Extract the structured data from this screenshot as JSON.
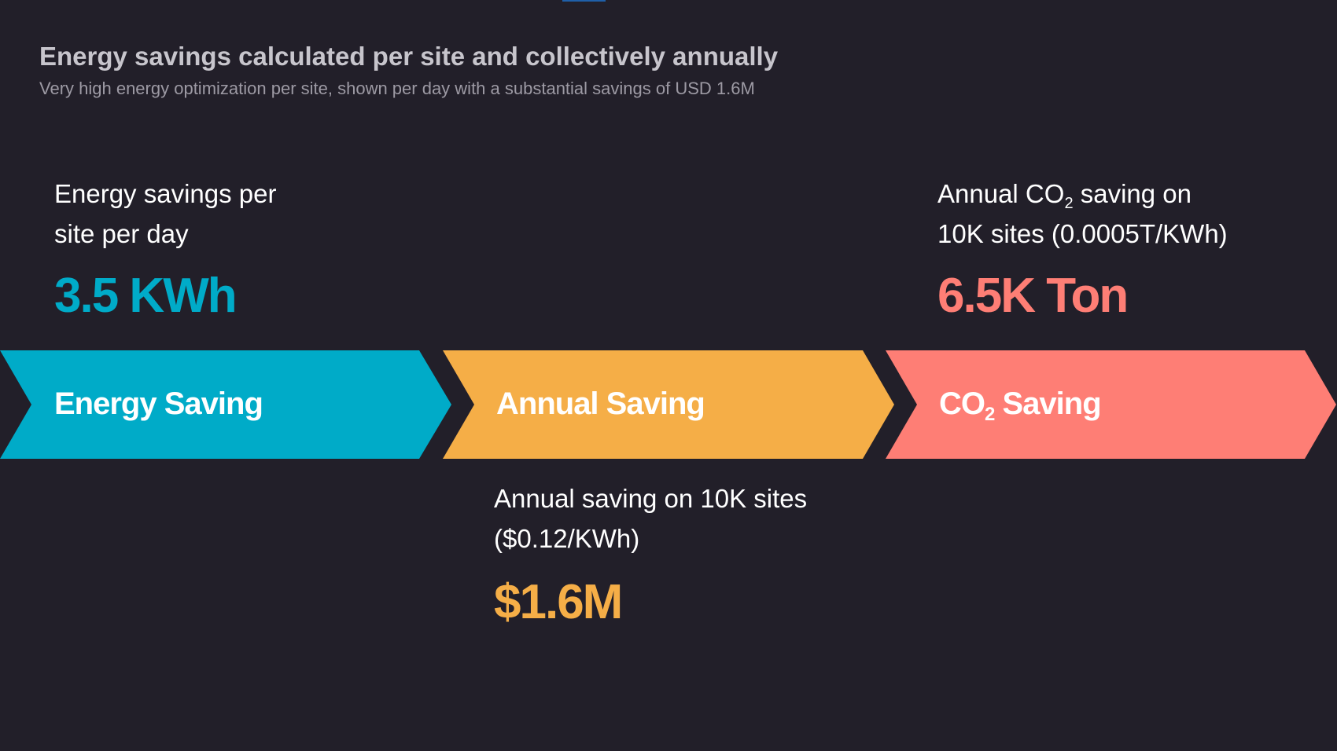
{
  "header": {
    "title": "Energy savings calculated per site and collectively annually",
    "subtitle": "Very high energy optimization per site, shown per day with a substantial savings of USD 1.6M"
  },
  "colors": {
    "background": "#221f29",
    "energy": "#00abc8",
    "annual": "#f5ae47",
    "co2": "#fe7e75"
  },
  "energy": {
    "desc_line1": "Energy savings per",
    "desc_line2": "site per day",
    "value": "3.5 KWh",
    "chevron_label": "Energy Saving"
  },
  "annual": {
    "desc_line1": "Annual saving on 10K sites",
    "desc_line2": "($0.12/KWh)",
    "value": "$1.6M",
    "chevron_label": "Annual Saving"
  },
  "co2": {
    "desc_line1_prefix": "Annual CO",
    "desc_line1_sub": "2",
    "desc_line1_suffix": " saving on",
    "desc_line2": "10K sites (0.0005T/KWh)",
    "value": "6.5K Ton",
    "chevron_label_prefix": "CO",
    "chevron_label_sub": "2",
    "chevron_label_suffix": " Saving"
  }
}
